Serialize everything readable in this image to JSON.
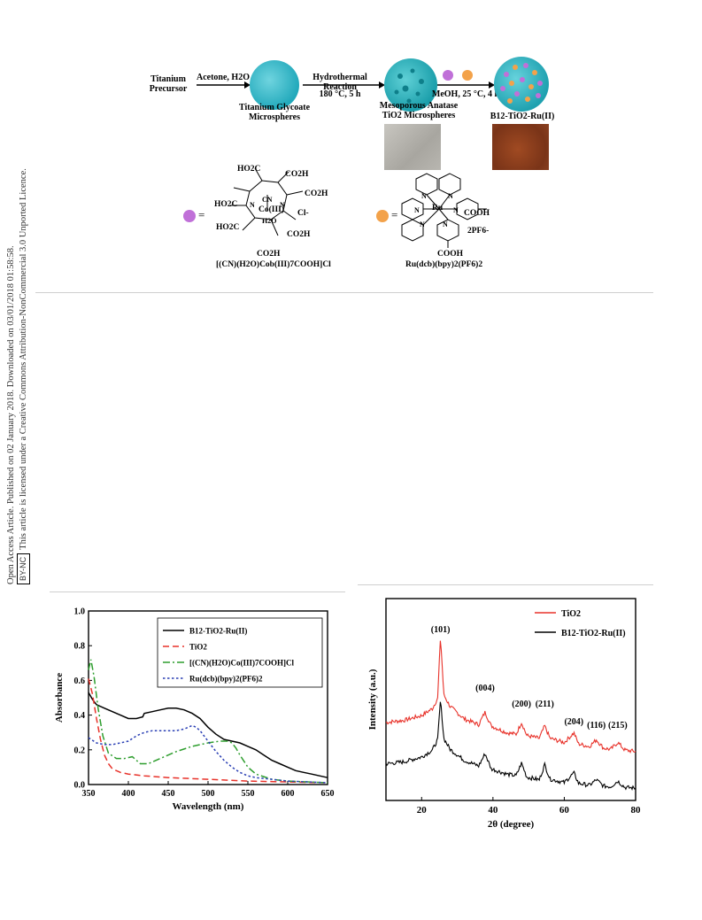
{
  "side_note": {
    "line1": "Open Access Article. Published on 02 January 2018. Downloaded on 03/01/2018 01:58:58.",
    "badge": "BY-NC",
    "line2": "This article is licensed under a Creative Commons Attribution-NonCommercial 3.0 Unported Licence."
  },
  "scheme": {
    "precursor": "Titanium Precursor",
    "step1": "Acetone, H2O",
    "glycoate": "Titanium Glycoate Microspheres",
    "step2_top": "Hydrothermal Reaction",
    "step2_bottom": "180 °C, 5 h",
    "anatase": "Mesoporous Anatase TiO2 Microspheres",
    "step3": "MeOH, 25 °C, 4 h",
    "product": "B12-TiO2-Ru(II)",
    "cob_name": "[(CN)(H2O)Cob(III)7COOH]Cl",
    "ru_name": "Ru(dcb)(bpy)2(PF6)2",
    "cob_groups": [
      "HO2C",
      "CO2H",
      "CO2H",
      "HO2C",
      "CO2H",
      "HO2C",
      "CO2H",
      "CN",
      "Co(III)",
      "H2O",
      "N",
      "N",
      "Cl-"
    ],
    "ru_groups": [
      "Ru",
      "N",
      "N",
      "N",
      "N",
      "N",
      "N",
      "COOH",
      "COOH",
      "2PF6-"
    ],
    "equals": "="
  },
  "chart_data": [
    {
      "type": "line",
      "xlabel": "Wavelength (nm)",
      "ylabel": "Absorbance",
      "xlim": [
        350,
        650
      ],
      "ylim": [
        0.0,
        1.0
      ],
      "xticks": [
        "350",
        "400",
        "450",
        "500",
        "550",
        "600",
        "650"
      ],
      "yticks": [
        "0.0",
        "0.2",
        "0.4",
        "0.6",
        "0.8",
        "1.0"
      ],
      "legend_position": "top-right",
      "series": [
        {
          "name": "B12-TiO2-Ru(II)",
          "color": "#000000",
          "dash": "solid",
          "x": [
            350,
            355,
            360,
            370,
            380,
            390,
            400,
            410,
            418,
            420,
            430,
            440,
            450,
            460,
            470,
            480,
            490,
            500,
            510,
            520,
            530,
            540,
            550,
            560,
            570,
            580,
            590,
            600,
            610,
            620,
            630,
            640,
            650
          ],
          "y": [
            0.53,
            0.49,
            0.46,
            0.44,
            0.42,
            0.4,
            0.38,
            0.38,
            0.39,
            0.41,
            0.42,
            0.43,
            0.44,
            0.44,
            0.43,
            0.41,
            0.38,
            0.33,
            0.29,
            0.26,
            0.25,
            0.24,
            0.22,
            0.2,
            0.17,
            0.14,
            0.12,
            0.1,
            0.08,
            0.07,
            0.06,
            0.05,
            0.04
          ]
        },
        {
          "name": "TiO2",
          "color": "#e8322a",
          "dash": "dashed",
          "x": [
            350,
            355,
            360,
            365,
            370,
            375,
            380,
            390,
            400,
            420,
            450,
            500,
            550,
            600,
            650
          ],
          "y": [
            0.61,
            0.52,
            0.38,
            0.26,
            0.17,
            0.12,
            0.09,
            0.07,
            0.06,
            0.05,
            0.04,
            0.03,
            0.02,
            0.015,
            0.01
          ]
        },
        {
          "name": "[(CN)(H2O)Co(III)7COOH]Cl",
          "color": "#2e9e2e",
          "dash": "dashdot",
          "x": [
            350,
            353,
            357,
            362,
            368,
            375,
            385,
            395,
            405,
            415,
            425,
            440,
            460,
            480,
            500,
            515,
            525,
            530,
            535,
            540,
            550,
            560,
            580,
            600,
            650
          ],
          "y": [
            0.66,
            0.72,
            0.62,
            0.44,
            0.28,
            0.18,
            0.15,
            0.15,
            0.16,
            0.12,
            0.12,
            0.15,
            0.19,
            0.22,
            0.24,
            0.25,
            0.25,
            0.24,
            0.21,
            0.17,
            0.1,
            0.06,
            0.03,
            0.02,
            0.01
          ]
        },
        {
          "name": "Ru(dcb)(bpy)2(PF6)2",
          "color": "#2a3fb4",
          "dash": "dotted",
          "x": [
            350,
            360,
            370,
            380,
            390,
            400,
            410,
            420,
            430,
            440,
            450,
            460,
            470,
            480,
            485,
            490,
            500,
            510,
            520,
            530,
            540,
            550,
            560,
            580,
            600,
            650
          ],
          "y": [
            0.27,
            0.24,
            0.23,
            0.23,
            0.24,
            0.25,
            0.28,
            0.3,
            0.31,
            0.31,
            0.31,
            0.31,
            0.32,
            0.34,
            0.33,
            0.31,
            0.25,
            0.19,
            0.14,
            0.1,
            0.07,
            0.05,
            0.04,
            0.03,
            0.02,
            0.01
          ]
        }
      ]
    },
    {
      "type": "line",
      "xlabel": "2θ (degree)",
      "ylabel": "Intensity (a.u.)",
      "xlim": [
        10,
        80
      ],
      "xticks": [
        "20",
        "40",
        "60",
        "80"
      ],
      "legend_position": "top-right",
      "peak_labels": [
        {
          "text": "(101)",
          "x": 25.3
        },
        {
          "text": "(004)",
          "x": 37.8
        },
        {
          "text": "(200)",
          "x": 48.0
        },
        {
          "text": "(211)",
          "x": 54.5
        },
        {
          "text": "(204)",
          "x": 62.7
        },
        {
          "text": "(116)",
          "x": 69.0
        },
        {
          "text": "(215)",
          "x": 75.0
        }
      ],
      "series": [
        {
          "name": "TiO2",
          "color": "#e8322a",
          "offset": 1.0,
          "x": [
            10,
            15,
            20,
            23,
            24.5,
            25.3,
            26.2,
            28,
            32,
            36,
            37.8,
            39.5,
            44,
            46.5,
            48.0,
            49.5,
            53,
            54.5,
            56,
            60,
            62.7,
            64,
            67,
            69.0,
            71,
            73,
            75.0,
            77,
            80
          ],
          "y": [
            0.95,
            0.98,
            1.05,
            1.15,
            1.3,
            2.2,
            1.35,
            1.18,
            1.0,
            0.92,
            1.1,
            0.9,
            0.8,
            0.78,
            0.95,
            0.76,
            0.72,
            0.9,
            0.72,
            0.66,
            0.8,
            0.64,
            0.6,
            0.7,
            0.58,
            0.56,
            0.66,
            0.55,
            0.53
          ]
        },
        {
          "name": "B12-TiO2-Ru(II)",
          "color": "#000000",
          "offset": 0.0,
          "x": [
            10,
            15,
            20,
            23,
            24.5,
            25.3,
            26.2,
            28,
            32,
            36,
            37.8,
            39.5,
            44,
            46.5,
            48.0,
            49.5,
            53,
            54.5,
            56,
            60,
            62.7,
            64,
            67,
            69.0,
            71,
            73,
            75.0,
            77,
            80
          ],
          "y": [
            0.35,
            0.38,
            0.45,
            0.55,
            0.7,
            1.28,
            0.72,
            0.56,
            0.4,
            0.32,
            0.5,
            0.28,
            0.2,
            0.18,
            0.36,
            0.16,
            0.12,
            0.34,
            0.13,
            0.08,
            0.22,
            0.07,
            0.04,
            0.12,
            0.03,
            0.02,
            0.1,
            0.01,
            0.0
          ]
        }
      ]
    }
  ]
}
